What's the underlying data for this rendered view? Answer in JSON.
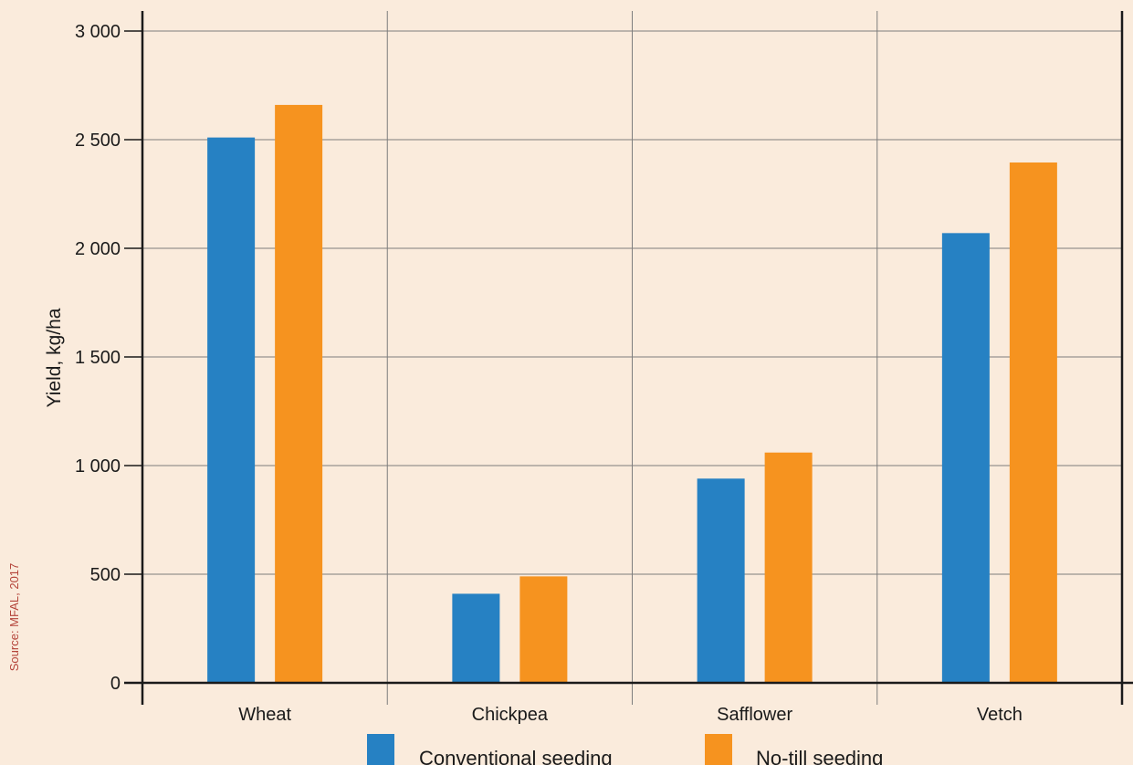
{
  "source_note": "Source: MFAL, 2017",
  "colors": {
    "background": "#faebdc",
    "grid": "#7d7d7d",
    "axis": "#1a1a1a",
    "conventional": "#2681c3",
    "notill": "#f6931f",
    "source_text": "#b4443a"
  },
  "chart_data": {
    "type": "bar",
    "ylabel": "Yield, kg/ha",
    "xlabel": "",
    "ylim": [
      0,
      3000
    ],
    "yticks": [
      0,
      500,
      1000,
      1500,
      2000,
      2500,
      3000
    ],
    "ytick_labels": [
      "0",
      "500",
      "1 000",
      "1 500",
      "2 000",
      "2 500",
      "3 000"
    ],
    "grid": true,
    "legend_position": "bottom",
    "categories": [
      "Wheat",
      "Chickpea",
      "Safflower",
      "Vetch"
    ],
    "series": [
      {
        "name": "Conventional seeding",
        "values": [
          2510,
          410,
          940,
          2070
        ],
        "color": "#2681c3"
      },
      {
        "name": "No-till seeding",
        "values": [
          2660,
          490,
          1060,
          2395
        ],
        "color": "#f6931f"
      }
    ]
  }
}
